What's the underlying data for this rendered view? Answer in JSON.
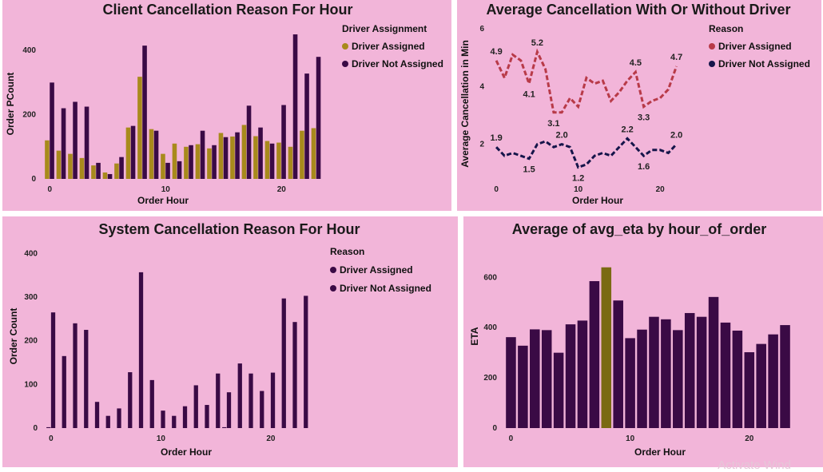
{
  "watermark": "Activate Wind",
  "chart_data": [
    {
      "type": "bar",
      "title": "Client Cancellation Reason For Hour",
      "xlabel": "Order Hour",
      "ylabel": "Order PCount",
      "legend_title": "Driver Assignment",
      "legend_position": "top-right",
      "x": [
        0,
        1,
        2,
        3,
        4,
        5,
        6,
        7,
        8,
        9,
        10,
        11,
        12,
        13,
        14,
        15,
        16,
        17,
        18,
        19,
        20,
        21,
        22,
        23
      ],
      "xticks": [
        0,
        10,
        20
      ],
      "yticks": [
        0,
        200,
        400
      ],
      "ylim": [
        0,
        470
      ],
      "series": [
        {
          "name": "Driver Assigned",
          "color": "#a88a1c",
          "values": [
            120,
            88,
            78,
            65,
            42,
            20,
            48,
            160,
            318,
            155,
            78,
            110,
            100,
            108,
            95,
            143,
            132,
            168,
            133,
            118,
            113,
            100,
            150,
            158
          ]
        },
        {
          "name": "Driver Not Assigned",
          "color": "#3a0a45",
          "values": [
            300,
            220,
            240,
            225,
            50,
            15,
            68,
            165,
            415,
            150,
            50,
            55,
            105,
            150,
            105,
            130,
            145,
            228,
            160,
            110,
            230,
            450,
            328,
            380
          ]
        }
      ]
    },
    {
      "type": "line",
      "title": "Average Cancellation With Or Without Driver",
      "xlabel": "Order Hour",
      "ylabel": "Average Cancellation in Min",
      "legend_title": "Reason",
      "legend_position": "top-right",
      "x": [
        0,
        1,
        2,
        3,
        4,
        5,
        6,
        7,
        8,
        9,
        10,
        11,
        12,
        13,
        14,
        15,
        16,
        17,
        18,
        19,
        20,
        21,
        22,
        23
      ],
      "xticks": [
        0,
        10,
        20
      ],
      "yticks": [
        2,
        4,
        6
      ],
      "ylim": [
        0.8,
        6
      ],
      "series": [
        {
          "name": "Driver Assigned",
          "color": "#b83a48",
          "values": [
            4.9,
            4.3,
            5.1,
            4.9,
            4.1,
            5.2,
            4.6,
            3.1,
            3.1,
            3.6,
            3.3,
            4.3,
            4.1,
            4.2,
            3.5,
            3.8,
            4.2,
            4.5,
            3.3,
            3.5,
            3.6,
            3.9,
            4.7,
            null
          ],
          "labels": [
            {
              "i": 0,
              "text": "4.9"
            },
            {
              "i": 4,
              "text": "4.1"
            },
            {
              "i": 5,
              "text": "5.2"
            },
            {
              "i": 7,
              "text": "3.1"
            },
            {
              "i": 17,
              "text": "4.5"
            },
            {
              "i": 18,
              "text": "3.3"
            },
            {
              "i": 22,
              "text": "4.7"
            }
          ]
        },
        {
          "name": "Driver Not Assigned",
          "color": "#15154a",
          "values": [
            1.9,
            1.6,
            1.7,
            1.6,
            1.5,
            2.0,
            2.1,
            1.9,
            2.0,
            1.9,
            1.2,
            1.3,
            1.6,
            1.7,
            1.6,
            1.9,
            2.2,
            1.9,
            1.6,
            1.8,
            1.8,
            1.7,
            2.0,
            null
          ],
          "labels": [
            {
              "i": 0,
              "text": "1.9"
            },
            {
              "i": 4,
              "text": "1.5"
            },
            {
              "i": 8,
              "text": "2.0"
            },
            {
              "i": 10,
              "text": "1.2"
            },
            {
              "i": 16,
              "text": "2.2"
            },
            {
              "i": 18,
              "text": "1.6"
            },
            {
              "i": 22,
              "text": "2.0"
            }
          ]
        }
      ]
    },
    {
      "type": "bar",
      "title": "System Cancellation Reason For Hour",
      "xlabel": "Order Hour",
      "ylabel": "Order Count",
      "legend_title": "Reason",
      "legend_position": "top-right",
      "x": [
        0,
        1,
        2,
        3,
        4,
        5,
        6,
        7,
        8,
        9,
        10,
        11,
        12,
        13,
        14,
        15,
        16,
        17,
        18,
        19,
        20,
        21,
        22,
        23
      ],
      "xticks": [
        0,
        10,
        20
      ],
      "yticks": [
        0,
        100,
        200,
        300,
        400
      ],
      "ylim": [
        0,
        430
      ],
      "series": [
        {
          "name": "Driver Assigned",
          "color": "#3a0a45",
          "values": [
            2,
            0,
            0,
            0,
            0,
            0,
            0,
            0,
            0,
            0,
            0,
            0,
            0,
            0,
            0,
            0,
            2,
            0,
            0,
            0,
            0,
            0,
            0,
            0
          ]
        },
        {
          "name": "Driver Not Assigned",
          "color": "#3a0a45",
          "values": [
            265,
            165,
            240,
            225,
            60,
            28,
            45,
            128,
            357,
            110,
            40,
            28,
            50,
            98,
            53,
            125,
            82,
            148,
            125,
            85,
            127,
            297,
            243,
            303
          ]
        }
      ]
    },
    {
      "type": "bar",
      "title": "Average of avg_eta by hour_of_order",
      "xlabel": "Order Hour",
      "ylabel": "ETA",
      "x": [
        0,
        1,
        2,
        3,
        4,
        5,
        6,
        7,
        8,
        9,
        10,
        11,
        12,
        13,
        14,
        15,
        16,
        17,
        18,
        19,
        20,
        21,
        22,
        23
      ],
      "xticks": [
        0,
        10,
        20
      ],
      "yticks": [
        0,
        200,
        400,
        600
      ],
      "ylim": [
        0,
        690
      ],
      "highlight_index": 8,
      "color": "#3a0a45",
      "highlight_color": "#7a6a12",
      "values": [
        362,
        328,
        393,
        390,
        300,
        413,
        428,
        585,
        640,
        508,
        358,
        392,
        443,
        433,
        390,
        458,
        443,
        522,
        420,
        388,
        302,
        335,
        373,
        410
      ]
    }
  ]
}
